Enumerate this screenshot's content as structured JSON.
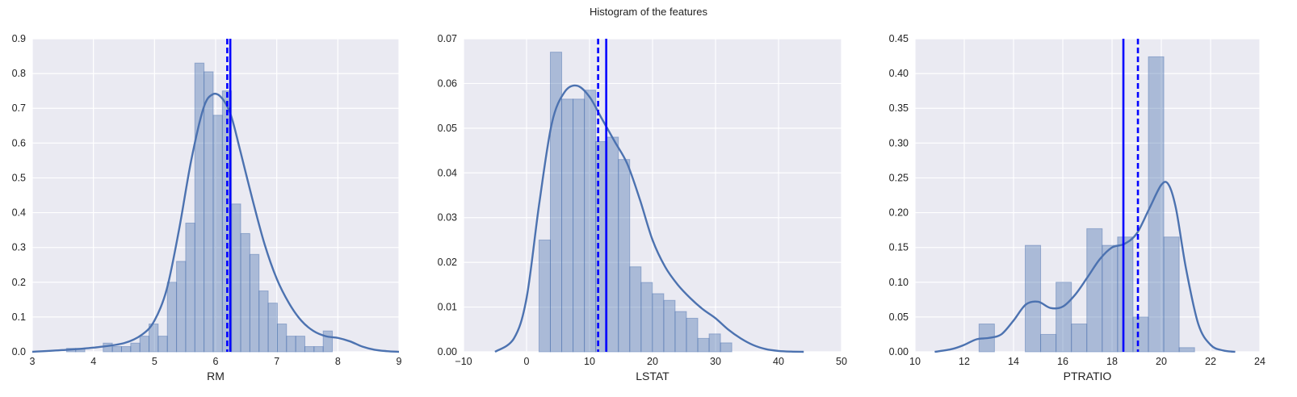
{
  "figure": {
    "title": "Histogram of the features"
  },
  "chart_data": [
    {
      "type": "bar",
      "xlabel": "RM",
      "ylabel": "",
      "xlim": [
        3,
        9
      ],
      "ylim": [
        0,
        0.9
      ],
      "xticks": [
        3,
        4,
        5,
        6,
        7,
        8,
        9
      ],
      "yticks": [
        0.0,
        0.1,
        0.2,
        0.3,
        0.4,
        0.5,
        0.6,
        0.7,
        0.8,
        0.9
      ],
      "ytick_decimals": 1,
      "grid": true,
      "bin_start": 3.56,
      "bin_width": 0.15,
      "heights": [
        0.01,
        0.01,
        0.0,
        0.0,
        0.025,
        0.015,
        0.015,
        0.025,
        0.045,
        0.08,
        0.045,
        0.2,
        0.26,
        0.37,
        0.83,
        0.805,
        0.68,
        0.75,
        0.425,
        0.34,
        0.28,
        0.175,
        0.14,
        0.08,
        0.045,
        0.045,
        0.015,
        0.015,
        0.06
      ],
      "kde": {
        "x": [
          3.0,
          3.5,
          4.0,
          4.5,
          4.8,
          5.0,
          5.2,
          5.4,
          5.6,
          5.8,
          5.95,
          6.1,
          6.25,
          6.4,
          6.6,
          6.8,
          7.0,
          7.2,
          7.4,
          7.6,
          7.8,
          8.0,
          8.2,
          8.4,
          8.6,
          8.8,
          9.0
        ],
        "y": [
          0.0,
          0.005,
          0.012,
          0.025,
          0.05,
          0.09,
          0.18,
          0.35,
          0.55,
          0.7,
          0.74,
          0.73,
          0.68,
          0.58,
          0.44,
          0.31,
          0.21,
          0.14,
          0.09,
          0.06,
          0.045,
          0.04,
          0.03,
          0.015,
          0.006,
          0.002,
          0.0
        ]
      },
      "mean": 6.24,
      "median": 6.19
    },
    {
      "type": "bar",
      "xlabel": "LSTAT",
      "ylabel": "",
      "xlim": [
        -10,
        50
      ],
      "ylim": [
        0,
        0.07
      ],
      "xticks": [
        -10,
        0,
        10,
        20,
        30,
        40,
        50
      ],
      "yticks": [
        0.0,
        0.01,
        0.02,
        0.03,
        0.04,
        0.05,
        0.06,
        0.07
      ],
      "ytick_decimals": 2,
      "grid": true,
      "bin_start": 1.98,
      "bin_width": 1.8,
      "heights": [
        0.025,
        0.067,
        0.0565,
        0.0565,
        0.0585,
        0.047,
        0.048,
        0.043,
        0.019,
        0.0155,
        0.013,
        0.0115,
        0.009,
        0.0075,
        0.003,
        0.004,
        0.002
      ],
      "kde": {
        "x": [
          -5,
          -2,
          0,
          2,
          4,
          6,
          8,
          10,
          12,
          14,
          16,
          18,
          20,
          22,
          24,
          26,
          28,
          30,
          32,
          34,
          36,
          38,
          40,
          42,
          44
        ],
        "y": [
          0.0,
          0.003,
          0.012,
          0.033,
          0.051,
          0.058,
          0.0595,
          0.057,
          0.052,
          0.047,
          0.042,
          0.034,
          0.025,
          0.019,
          0.015,
          0.012,
          0.0095,
          0.0075,
          0.005,
          0.003,
          0.0015,
          0.0006,
          0.0002,
          5e-05,
          0.0
        ]
      },
      "mean": 12.65,
      "median": 11.36
    },
    {
      "type": "bar",
      "xlabel": "PTRATIO",
      "ylabel": "",
      "xlim": [
        10,
        24
      ],
      "ylim": [
        0,
        0.45
      ],
      "xticks": [
        10,
        12,
        14,
        16,
        18,
        20,
        22,
        24
      ],
      "yticks": [
        0.0,
        0.05,
        0.1,
        0.15,
        0.2,
        0.25,
        0.3,
        0.35,
        0.4,
        0.45
      ],
      "ytick_decimals": 2,
      "grid": true,
      "bin_start": 12.6,
      "bin_width": 0.625,
      "heights": [
        0.04,
        0.0,
        0.0,
        0.153,
        0.025,
        0.1,
        0.04,
        0.177,
        0.153,
        0.165,
        0.05,
        0.424,
        0.165,
        0.006
      ],
      "kde": {
        "x": [
          10.8,
          11.5,
          12.0,
          12.5,
          13.0,
          13.5,
          14.0,
          14.5,
          15.0,
          15.5,
          16.0,
          16.5,
          17.0,
          17.5,
          18.0,
          18.5,
          19.0,
          19.5,
          20.0,
          20.3,
          20.6,
          21.0,
          21.5,
          22.0,
          22.5,
          23.0
        ],
        "y": [
          0.0,
          0.004,
          0.01,
          0.018,
          0.02,
          0.025,
          0.045,
          0.068,
          0.072,
          0.063,
          0.065,
          0.082,
          0.107,
          0.133,
          0.15,
          0.155,
          0.17,
          0.205,
          0.24,
          0.24,
          0.205,
          0.12,
          0.04,
          0.01,
          0.002,
          0.0
        ]
      },
      "mean": 18.46,
      "median": 19.05
    }
  ]
}
